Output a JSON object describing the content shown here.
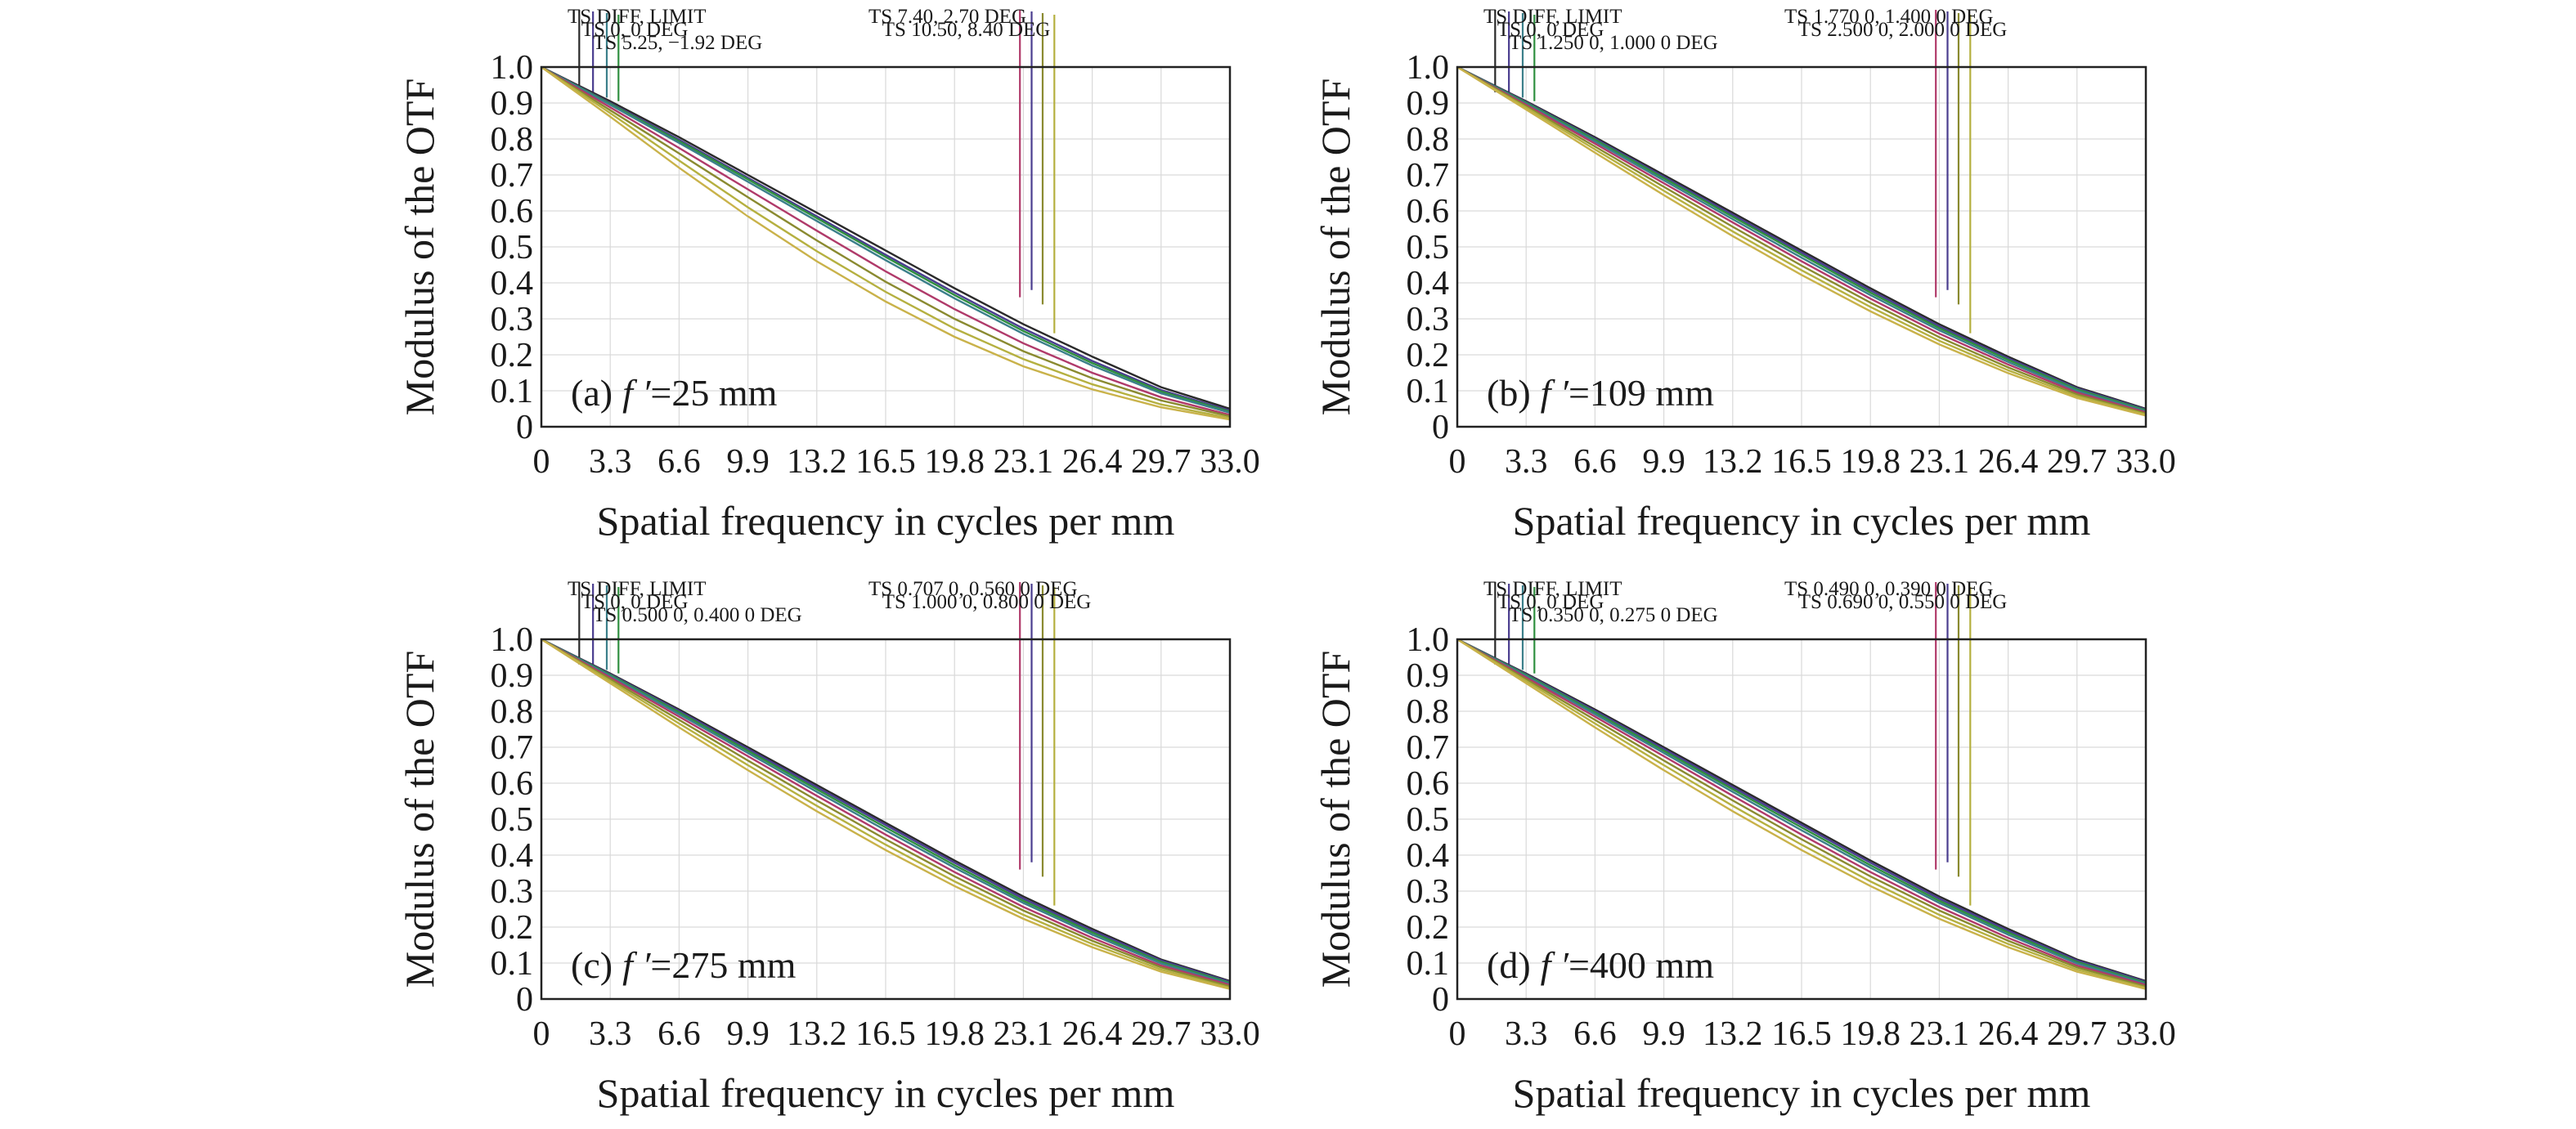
{
  "chart_data": [
    {
      "type": "line",
      "panel_label": "(a)",
      "focal_symbol": "f ′",
      "focal_value": "=25 mm",
      "xlabel": "Spatial frequency in cycles per mm",
      "ylabel": "Modulus of the OTF",
      "xlim": [
        0,
        33
      ],
      "ylim": [
        0,
        1
      ],
      "x_ticks": [
        "0",
        "3.3",
        "6.6",
        "9.9",
        "13.2",
        "16.5",
        "19.8",
        "23.1",
        "26.4",
        "29.7",
        "33.0"
      ],
      "y_ticks": [
        "0",
        "0.1",
        "0.2",
        "0.3",
        "0.4",
        "0.5",
        "0.6",
        "0.7",
        "0.8",
        "0.9",
        "1.0"
      ],
      "grid": true,
      "legend": {
        "labels": [
          "TS DIFF, LIMIT",
          "TS 0, 0 DEG",
          "TS 5.25, −1.92 DEG",
          "TS 7.40, 2.70 DEG",
          "TS 10.50, 8.40 DEG"
        ],
        "colors": [
          "#2a2a2a",
          "#4a3d8f",
          "#2f8f3f",
          "#b03a6a",
          "#b5b040"
        ]
      },
      "x": [
        0,
        3.3,
        6.6,
        9.9,
        13.2,
        16.5,
        19.8,
        23.1,
        26.4,
        29.7,
        33.0
      ],
      "series": [
        {
          "color": "#2a2a2a",
          "values": [
            1.0,
            0.905,
            0.805,
            0.7,
            0.595,
            0.49,
            0.385,
            0.285,
            0.195,
            0.11,
            0.05
          ]
        },
        {
          "color": "#4a3d8f",
          "values": [
            1.0,
            0.9,
            0.798,
            0.692,
            0.585,
            0.478,
            0.373,
            0.273,
            0.183,
            0.102,
            0.045
          ]
        },
        {
          "color": "#2f8f3f",
          "values": [
            1.0,
            0.898,
            0.794,
            0.688,
            0.58,
            0.472,
            0.366,
            0.266,
            0.177,
            0.098,
            0.042
          ]
        },
        {
          "color": "#3b7f8a",
          "values": [
            1.0,
            0.895,
            0.789,
            0.681,
            0.572,
            0.463,
            0.357,
            0.258,
            0.17,
            0.093,
            0.039
          ]
        },
        {
          "color": "#b03a6a",
          "values": [
            1.0,
            0.888,
            0.775,
            0.66,
            0.545,
            0.432,
            0.327,
            0.232,
            0.15,
            0.082,
            0.033
          ]
        },
        {
          "color": "#8a8a30",
          "values": [
            1.0,
            0.88,
            0.76,
            0.638,
            0.518,
            0.403,
            0.3,
            0.21,
            0.135,
            0.073,
            0.029
          ]
        },
        {
          "color": "#b5b040",
          "values": [
            1.0,
            0.872,
            0.74,
            0.61,
            0.488,
            0.375,
            0.273,
            0.188,
            0.118,
            0.062,
            0.024
          ]
        },
        {
          "color": "#c9b24a",
          "values": [
            1.0,
            0.862,
            0.72,
            0.585,
            0.46,
            0.348,
            0.25,
            0.168,
            0.104,
            0.054,
            0.02
          ]
        }
      ]
    },
    {
      "type": "line",
      "panel_label": "(b)",
      "focal_symbol": "f ′",
      "focal_value": "=109 mm",
      "xlabel": "Spatial frequency in cycles per mm",
      "ylabel": "Modulus of the OTF",
      "xlim": [
        0,
        33
      ],
      "ylim": [
        0,
        1
      ],
      "x_ticks": [
        "0",
        "3.3",
        "6.6",
        "9.9",
        "13.2",
        "16.5",
        "19.8",
        "23.1",
        "26.4",
        "29.7",
        "33.0"
      ],
      "y_ticks": [
        "0",
        "0.1",
        "0.2",
        "0.3",
        "0.4",
        "0.5",
        "0.6",
        "0.7",
        "0.8",
        "0.9",
        "1.0"
      ],
      "grid": true,
      "legend": {
        "labels": [
          "TS DIFF, LIMIT",
          "TS 0, 0 DEG",
          "TS 1.250 0, 1.000 0 DEG",
          "TS 1.770 0, 1.400 0 DEG",
          "TS 2.500 0, 2.000 0 DEG"
        ],
        "colors": [
          "#2a2a2a",
          "#4a3d8f",
          "#2f8f3f",
          "#b03a6a",
          "#b5b040"
        ]
      },
      "x": [
        0,
        3.3,
        6.6,
        9.9,
        13.2,
        16.5,
        19.8,
        23.1,
        26.4,
        29.7,
        33.0
      ],
      "series": [
        {
          "color": "#2a2a2a",
          "values": [
            1.0,
            0.905,
            0.805,
            0.7,
            0.595,
            0.49,
            0.385,
            0.285,
            0.195,
            0.11,
            0.05
          ]
        },
        {
          "color": "#4a3d8f",
          "values": [
            1.0,
            0.903,
            0.801,
            0.695,
            0.589,
            0.484,
            0.379,
            0.279,
            0.19,
            0.107,
            0.048
          ]
        },
        {
          "color": "#2f8f3f",
          "values": [
            1.0,
            0.901,
            0.798,
            0.691,
            0.584,
            0.478,
            0.373,
            0.274,
            0.186,
            0.104,
            0.046
          ]
        },
        {
          "color": "#3b7f8a",
          "values": [
            1.0,
            0.898,
            0.793,
            0.685,
            0.577,
            0.47,
            0.366,
            0.268,
            0.18,
            0.1,
            0.043
          ]
        },
        {
          "color": "#b03a6a",
          "values": [
            1.0,
            0.895,
            0.787,
            0.677,
            0.568,
            0.46,
            0.356,
            0.259,
            0.173,
            0.095,
            0.04
          ]
        },
        {
          "color": "#8a8a30",
          "values": [
            1.0,
            0.891,
            0.779,
            0.667,
            0.556,
            0.448,
            0.345,
            0.249,
            0.165,
            0.09,
            0.037
          ]
        },
        {
          "color": "#b5b040",
          "values": [
            1.0,
            0.887,
            0.771,
            0.656,
            0.543,
            0.435,
            0.333,
            0.239,
            0.157,
            0.085,
            0.034
          ]
        },
        {
          "color": "#c9b24a",
          "values": [
            1.0,
            0.882,
            0.762,
            0.644,
            0.53,
            0.422,
            0.321,
            0.229,
            0.149,
            0.08,
            0.031
          ]
        }
      ]
    },
    {
      "type": "line",
      "panel_label": "(c)",
      "focal_symbol": "f ′",
      "focal_value": "=275 mm",
      "xlabel": "Spatial frequency in cycles per mm",
      "ylabel": "Modulus of the OTF",
      "xlim": [
        0,
        33
      ],
      "ylim": [
        0,
        1
      ],
      "x_ticks": [
        "0",
        "3.3",
        "6.6",
        "9.9",
        "13.2",
        "16.5",
        "19.8",
        "23.1",
        "26.4",
        "29.7",
        "33.0"
      ],
      "y_ticks": [
        "0",
        "0.1",
        "0.2",
        "0.3",
        "0.4",
        "0.5",
        "0.6",
        "0.7",
        "0.8",
        "0.9",
        "1.0"
      ],
      "grid": true,
      "legend": {
        "labels": [
          "TS DIFF, LIMIT",
          "TS 0, 0 DEG",
          "TS 0.500 0, 0.400 0 DEG",
          "TS 0.707 0, 0.560 0 DEG",
          "TS 1.000 0, 0.800 0 DEG"
        ],
        "colors": [
          "#2a2a2a",
          "#4a3d8f",
          "#2f8f3f",
          "#b03a6a",
          "#b5b040"
        ]
      },
      "x": [
        0,
        3.3,
        6.6,
        9.9,
        13.2,
        16.5,
        19.8,
        23.1,
        26.4,
        29.7,
        33.0
      ],
      "series": [
        {
          "color": "#2a2a2a",
          "values": [
            1.0,
            0.905,
            0.805,
            0.7,
            0.595,
            0.49,
            0.385,
            0.285,
            0.195,
            0.11,
            0.05
          ]
        },
        {
          "color": "#4a3d8f",
          "values": [
            1.0,
            0.903,
            0.801,
            0.695,
            0.589,
            0.484,
            0.379,
            0.279,
            0.19,
            0.107,
            0.048
          ]
        },
        {
          "color": "#2f8f3f",
          "values": [
            1.0,
            0.901,
            0.797,
            0.69,
            0.583,
            0.477,
            0.372,
            0.273,
            0.185,
            0.103,
            0.045
          ]
        },
        {
          "color": "#3b7f8a",
          "values": [
            1.0,
            0.898,
            0.792,
            0.684,
            0.576,
            0.469,
            0.365,
            0.267,
            0.179,
            0.099,
            0.042
          ]
        },
        {
          "color": "#b03a6a",
          "values": [
            1.0,
            0.894,
            0.785,
            0.675,
            0.565,
            0.457,
            0.353,
            0.256,
            0.17,
            0.093,
            0.039
          ]
        },
        {
          "color": "#8a8a30",
          "values": [
            1.0,
            0.889,
            0.776,
            0.663,
            0.552,
            0.444,
            0.341,
            0.246,
            0.162,
            0.088,
            0.035
          ]
        },
        {
          "color": "#b5b040",
          "values": [
            1.0,
            0.884,
            0.766,
            0.65,
            0.537,
            0.429,
            0.327,
            0.234,
            0.153,
            0.082,
            0.031
          ]
        },
        {
          "color": "#c9b24a",
          "values": [
            1.0,
            0.878,
            0.755,
            0.636,
            0.522,
            0.414,
            0.314,
            0.223,
            0.144,
            0.076,
            0.028
          ]
        }
      ]
    },
    {
      "type": "line",
      "panel_label": "(d)",
      "focal_symbol": "f ′",
      "focal_value": "=400 mm",
      "xlabel": "Spatial frequency in cycles per mm",
      "ylabel": "Modulus of the OTF",
      "xlim": [
        0,
        33
      ],
      "ylim": [
        0,
        1
      ],
      "x_ticks": [
        "0",
        "3.3",
        "6.6",
        "9.9",
        "13.2",
        "16.5",
        "19.8",
        "23.1",
        "26.4",
        "29.7",
        "33.0"
      ],
      "y_ticks": [
        "0",
        "0.1",
        "0.2",
        "0.3",
        "0.4",
        "0.5",
        "0.6",
        "0.7",
        "0.8",
        "0.9",
        "1.0"
      ],
      "grid": true,
      "legend": {
        "labels": [
          "TS DIFF, LIMIT",
          "TS 0, 0 DEG",
          "TS 0.350 0, 0.275 0 DEG",
          "TS 0.490 0, 0.390 0 DEG",
          "TS 0.690 0, 0.550 0 DEG"
        ],
        "colors": [
          "#2a2a2a",
          "#4a3d8f",
          "#2f8f3f",
          "#b03a6a",
          "#b5b040"
        ]
      },
      "x": [
        0,
        3.3,
        6.6,
        9.9,
        13.2,
        16.5,
        19.8,
        23.1,
        26.4,
        29.7,
        33.0
      ],
      "series": [
        {
          "color": "#2a2a2a",
          "values": [
            1.0,
            0.905,
            0.805,
            0.7,
            0.595,
            0.49,
            0.385,
            0.285,
            0.195,
            0.11,
            0.05
          ]
        },
        {
          "color": "#4a3d8f",
          "values": [
            1.0,
            0.903,
            0.801,
            0.695,
            0.589,
            0.484,
            0.379,
            0.279,
            0.19,
            0.107,
            0.048
          ]
        },
        {
          "color": "#2f8f3f",
          "values": [
            1.0,
            0.901,
            0.797,
            0.69,
            0.583,
            0.477,
            0.372,
            0.273,
            0.185,
            0.103,
            0.045
          ]
        },
        {
          "color": "#3b7f8a",
          "values": [
            1.0,
            0.898,
            0.792,
            0.684,
            0.576,
            0.469,
            0.365,
            0.267,
            0.179,
            0.099,
            0.042
          ]
        },
        {
          "color": "#b03a6a",
          "values": [
            1.0,
            0.894,
            0.785,
            0.675,
            0.565,
            0.457,
            0.353,
            0.256,
            0.17,
            0.093,
            0.039
          ]
        },
        {
          "color": "#8a8a30",
          "values": [
            1.0,
            0.889,
            0.776,
            0.663,
            0.552,
            0.444,
            0.341,
            0.246,
            0.162,
            0.088,
            0.035
          ]
        },
        {
          "color": "#b5b040",
          "values": [
            1.0,
            0.884,
            0.766,
            0.65,
            0.537,
            0.429,
            0.327,
            0.234,
            0.153,
            0.082,
            0.031
          ]
        },
        {
          "color": "#c9b24a",
          "values": [
            1.0,
            0.878,
            0.755,
            0.636,
            0.522,
            0.414,
            0.314,
            0.223,
            0.144,
            0.076,
            0.028
          ]
        }
      ]
    }
  ]
}
